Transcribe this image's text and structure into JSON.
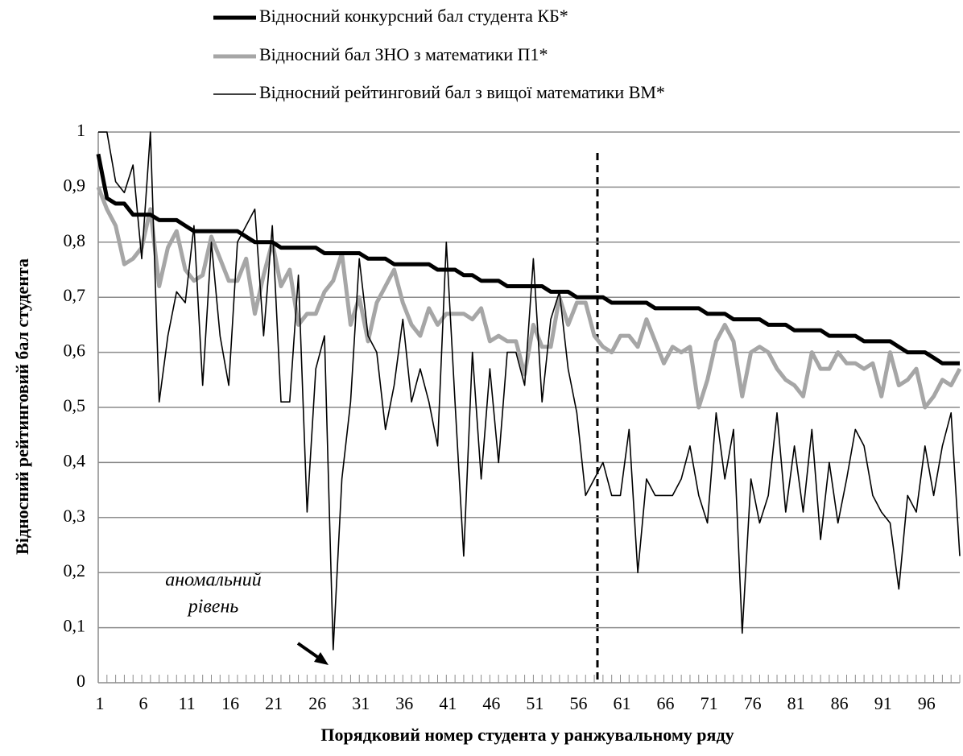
{
  "chart_data": {
    "type": "line",
    "y_label": "Відносний рейтинговий бал студента",
    "x_label": "Порядковий номер студента у ранжувальному ряду",
    "annotations": [
      "аномальний",
      "рівень"
    ],
    "categories": [
      1,
      null,
      null,
      null,
      null,
      6,
      null,
      null,
      null,
      null,
      11,
      null,
      null,
      null,
      null,
      16,
      null,
      null,
      null,
      null,
      21,
      null,
      null,
      null,
      null,
      26,
      null,
      null,
      null,
      null,
      31,
      null,
      null,
      null,
      null,
      36,
      null,
      null,
      null,
      null,
      41,
      null,
      null,
      null,
      null,
      46,
      null,
      null,
      null,
      null,
      51,
      null,
      null,
      null,
      null,
      56,
      null,
      null,
      null,
      null,
      61,
      null,
      null,
      null,
      null,
      66,
      null,
      null,
      null,
      null,
      71,
      null,
      null,
      null,
      null,
      76,
      null,
      null,
      null,
      null,
      81,
      null,
      null,
      null,
      null,
      86,
      null,
      null,
      null,
      null,
      91,
      null,
      null,
      null,
      null,
      96,
      null,
      null,
      null,
      null
    ],
    "ylim": [
      0,
      1
    ],
    "yticks": [
      0,
      {
        "value": 0.1,
        "label": "0,1"
      },
      {
        "value": 0.2,
        "label": "0,2"
      },
      {
        "value": 0.3,
        "label": "0,3"
      },
      {
        "value": 0.4,
        "label": "0,4"
      },
      {
        "value": 0.5,
        "label": "0,5"
      },
      {
        "value": 0.6,
        "label": "0,6"
      },
      {
        "value": 0.7,
        "label": "0,7"
      },
      {
        "value": 0.8,
        "label": "0,8"
      },
      {
        "value": 0.9,
        "label": "0,9"
      },
      1
    ],
    "grid": true,
    "legend": "top",
    "series": [
      {
        "name": "Відносний конкурсний бал студента КБ*",
        "color": "#000000",
        "values": [
          0.96,
          0.88,
          0.87,
          0.87,
          0.85,
          0.85,
          0.85,
          0.84,
          0.84,
          0.84,
          0.83,
          0.82,
          0.82,
          0.82,
          0.82,
          0.82,
          0.82,
          0.81,
          0.8,
          0.8,
          0.8,
          0.79,
          0.79,
          0.79,
          0.79,
          0.79,
          0.78,
          0.78,
          0.78,
          0.78,
          0.78,
          0.77,
          0.77,
          0.77,
          0.76,
          0.76,
          0.76,
          0.76,
          0.76,
          0.75,
          0.75,
          0.75,
          0.74,
          0.74,
          0.73,
          0.73,
          0.73,
          0.72,
          0.72,
          0.72,
          0.72,
          0.72,
          0.71,
          0.71,
          0.71,
          0.7,
          0.7,
          0.7,
          0.7,
          0.69,
          0.69,
          0.69,
          0.69,
          0.69,
          0.68,
          0.68,
          0.68,
          0.68,
          0.68,
          0.68,
          0.67,
          0.67,
          0.67,
          0.66,
          0.66,
          0.66,
          0.66,
          0.65,
          0.65,
          0.65,
          0.64,
          0.64,
          0.64,
          0.64,
          0.63,
          0.63,
          0.63,
          0.63,
          0.62,
          0.62,
          0.62,
          0.62,
          0.61,
          0.6,
          0.6,
          0.6,
          0.59,
          0.58,
          0.58,
          0.58
        ]
      },
      {
        "name": "Відносний бал ЗНО з математики П1*",
        "color": "#a6a6a6",
        "values": [
          0.9,
          0.86,
          0.83,
          0.76,
          0.77,
          0.79,
          0.86,
          0.72,
          0.79,
          0.82,
          0.75,
          0.73,
          0.74,
          0.81,
          0.77,
          0.73,
          0.73,
          0.77,
          0.67,
          0.74,
          0.8,
          0.72,
          0.75,
          0.65,
          0.67,
          0.67,
          0.71,
          0.73,
          0.78,
          0.65,
          0.7,
          0.62,
          0.69,
          0.72,
          0.75,
          0.69,
          0.65,
          0.63,
          0.68,
          0.65,
          0.67,
          0.67,
          0.67,
          0.66,
          0.68,
          0.62,
          0.63,
          0.62,
          0.62,
          0.56,
          0.65,
          0.61,
          0.61,
          0.7,
          0.65,
          0.69,
          0.69,
          0.63,
          0.61,
          0.6,
          0.63,
          0.63,
          0.61,
          0.66,
          0.62,
          0.58,
          0.61,
          0.6,
          0.61,
          0.5,
          0.55,
          0.62,
          0.65,
          0.62,
          0.52,
          0.6,
          0.61,
          0.6,
          0.57,
          0.55,
          0.54,
          0.52,
          0.6,
          0.57,
          0.57,
          0.6,
          0.58,
          0.58,
          0.57,
          0.58,
          0.52,
          0.6,
          0.54,
          0.55,
          0.57,
          0.5,
          0.52,
          0.55,
          0.54,
          0.57
        ]
      },
      {
        "name": "Відносний рейтинговий бал з вищої математики ВМ*",
        "color": "#000000",
        "values": [
          1.0,
          1.0,
          0.91,
          0.89,
          0.94,
          0.77,
          1.0,
          0.51,
          0.63,
          0.71,
          0.69,
          0.83,
          0.54,
          0.8,
          0.63,
          0.54,
          0.8,
          0.83,
          0.86,
          0.63,
          0.83,
          0.51,
          0.51,
          0.74,
          0.31,
          0.57,
          0.63,
          0.06,
          0.37,
          0.51,
          0.77,
          0.63,
          0.6,
          0.46,
          0.54,
          0.66,
          0.51,
          0.57,
          0.51,
          0.43,
          0.8,
          0.51,
          0.23,
          0.6,
          0.37,
          0.57,
          0.4,
          0.6,
          0.6,
          0.54,
          0.77,
          0.51,
          0.66,
          0.71,
          0.57,
          0.49,
          0.34,
          0.37,
          0.4,
          0.34,
          0.34,
          0.46,
          0.2,
          0.37,
          0.34,
          0.34,
          0.34,
          0.37,
          0.43,
          0.34,
          0.29,
          0.49,
          0.37,
          0.46,
          0.09,
          0.37,
          0.29,
          0.34,
          0.49,
          0.31,
          0.43,
          0.31,
          0.46,
          0.26,
          0.4,
          0.29,
          0.37,
          0.46,
          0.43,
          0.34,
          0.31,
          0.29,
          0.17,
          0.34,
          0.31,
          0.43,
          0.34,
          0.43,
          0.49,
          0.23
        ]
      }
    ]
  }
}
